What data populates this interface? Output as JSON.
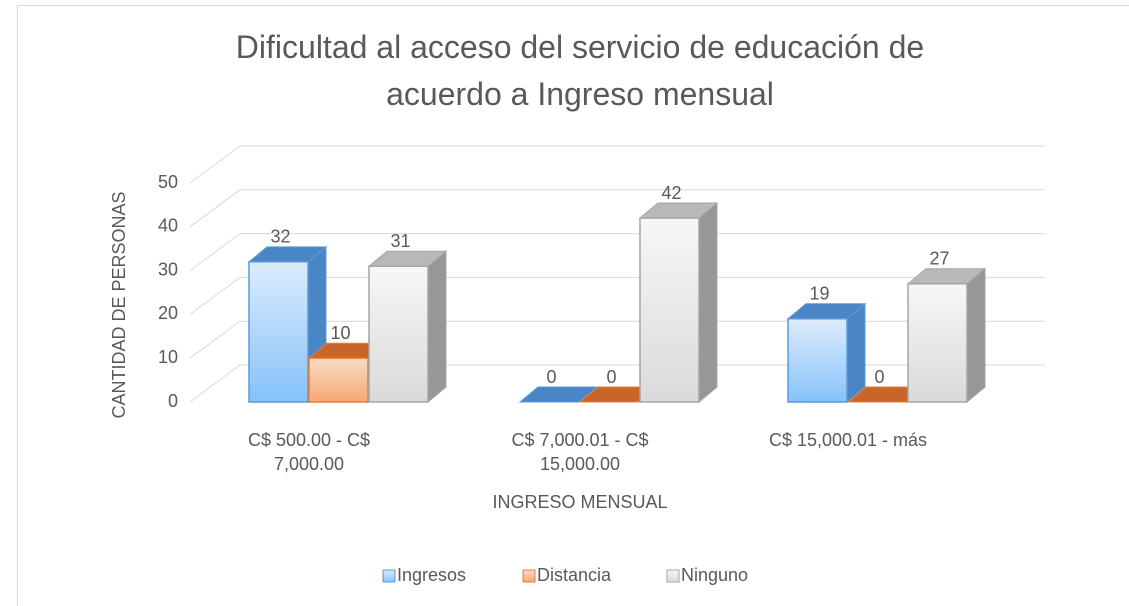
{
  "chart_data": {
    "type": "bar3d",
    "title": "Dificultad al acceso del servicio de educación de\nacuerdo a Ingreso mensual",
    "x_label": "INGRESO MENSUAL",
    "y_label": "CANTIDAD DE PERSONAS",
    "categories": [
      "C$ 500.00 - C$\n7,000.00",
      "C$ 7,000.01 - C$\n15,000.00",
      "C$ 15,000.01 - más"
    ],
    "series": [
      {
        "name": "Ingresos",
        "color": "#5b9bd5",
        "values": [
          32,
          0,
          19
        ]
      },
      {
        "name": "Distancia",
        "color": "#ed7d31",
        "values": [
          10,
          0,
          0
        ]
      },
      {
        "name": "Ninguno",
        "color": "#a5a5a5",
        "values": [
          31,
          42,
          27
        ]
      }
    ],
    "ylim": [
      0,
      50
    ],
    "yticks": [
      0,
      10,
      20,
      30,
      40,
      50
    ],
    "grid": true,
    "legend": "bottom"
  }
}
